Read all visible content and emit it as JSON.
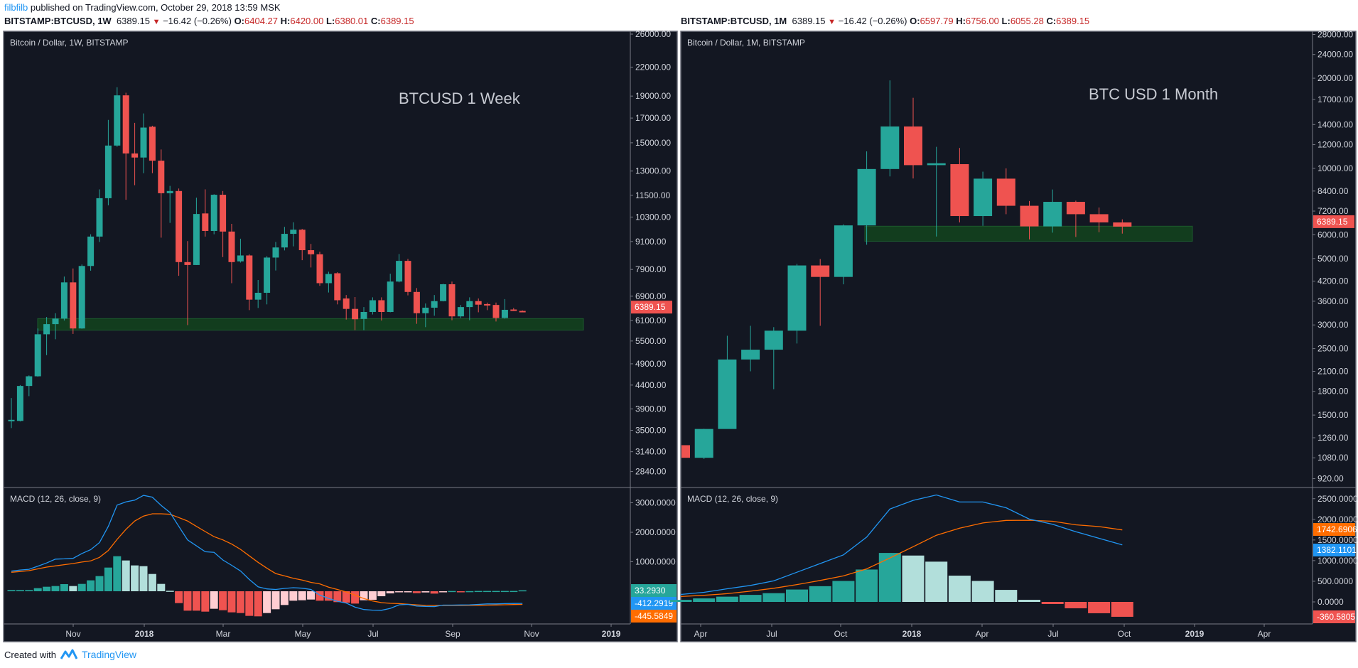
{
  "header": {
    "author": "filbfilb",
    "published": " published on TradingView.com, October 29, 2018 13:59 MSK"
  },
  "colors": {
    "up": "#26a69a",
    "up_light": "#b2dfdb",
    "down": "#ef5350",
    "down_light": "#ffcdd2",
    "macd": "#2196f3",
    "signal": "#ff6d00",
    "zone": "#123f1f",
    "bg": "#131722",
    "axis_text": "#d1d4dc",
    "brand": "#2196f3"
  },
  "footer": {
    "created_with": "Created with",
    "brand": "TradingView"
  },
  "chart_data": [
    {
      "type": "candlestick",
      "symbol_line": {
        "symbol": "BITSTAMP:BTCUSD, 1W",
        "last": "6389.15",
        "change": "−16.42 (−0.26%)",
        "o_label": "O:",
        "o": "6404.27",
        "h_label": "H:",
        "h": "6420.00",
        "l_label": "L:",
        "l": "6380.01",
        "c_label": "C:",
        "c": "6389.15",
        "direction": "▼"
      },
      "title": "Bitcoin / Dollar, 1W, BITSTAMP",
      "annotation": "BTCUSD 1 Week",
      "price_scale": "log",
      "y_ticks": [
        "26000.00",
        "22000.00",
        "19000.00",
        "17000.00",
        "15000.00",
        "13000.00",
        "11500.00",
        "10300.00",
        "9100.00",
        "7900.00",
        "6900.00",
        "6100.00",
        "5500.00",
        "4900.00",
        "4400.00",
        "3900.00",
        "3500.00",
        "3140.00",
        "2840.00"
      ],
      "last_price_label": "6389.15",
      "x_ticks": [
        "Nov",
        "2018",
        "Mar",
        "May",
        "Jul",
        "Sep",
        "Nov",
        "2019"
      ],
      "support_zone": {
        "low": 5810,
        "high": 6160
      },
      "ohlc": [
        [
          3670,
          4120,
          3540,
          3690
        ],
        [
          3670,
          4400,
          3660,
          4380
        ],
        [
          4380,
          4620,
          4160,
          4600
        ],
        [
          4600,
          5860,
          4590,
          5690
        ],
        [
          5690,
          6210,
          5120,
          5990
        ],
        [
          5990,
          6330,
          5550,
          6160
        ],
        [
          6160,
          7620,
          6100,
          7400
        ],
        [
          7400,
          7940,
          5700,
          5860
        ],
        [
          5860,
          8100,
          5850,
          8040
        ],
        [
          8040,
          9440,
          7850,
          9330
        ],
        [
          9330,
          11850,
          9080,
          11330
        ],
        [
          11330,
          16840,
          10930,
          14790
        ],
        [
          14790,
          19870,
          14700,
          19070
        ],
        [
          19070,
          19320,
          11240,
          14210
        ],
        [
          14210,
          16590,
          12100,
          13920
        ],
        [
          13920,
          17400,
          12860,
          16200
        ],
        [
          16270,
          16350,
          12860,
          13700
        ],
        [
          13700,
          14500,
          9280,
          11620
        ],
        [
          11620,
          12060,
          10000,
          11750
        ],
        [
          11750,
          11900,
          7650,
          8200
        ],
        [
          8200,
          9120,
          5960,
          8080
        ],
        [
          8080,
          11360,
          8080,
          10460
        ],
        [
          10490,
          11850,
          9330,
          9600
        ],
        [
          9600,
          11560,
          9440,
          11530
        ],
        [
          11530,
          11750,
          8410,
          9570
        ],
        [
          9570,
          9950,
          7370,
          8200
        ],
        [
          8230,
          9230,
          8180,
          8480
        ],
        [
          8480,
          8530,
          6430,
          6780
        ],
        [
          6780,
          7490,
          6500,
          7020
        ],
        [
          7020,
          8450,
          6620,
          8390
        ],
        [
          8390,
          9080,
          7860,
          8830
        ],
        [
          8830,
          9800,
          8700,
          9460
        ],
        [
          9460,
          10030,
          8880,
          9660
        ],
        [
          9660,
          9700,
          8280,
          8710
        ],
        [
          8710,
          8990,
          7980,
          8530
        ],
        [
          8530,
          8640,
          7270,
          7370
        ],
        [
          7370,
          7810,
          7030,
          7720
        ],
        [
          7750,
          7790,
          6620,
          6760
        ],
        [
          6820,
          6940,
          6130,
          6470
        ],
        [
          6470,
          6870,
          5810,
          6140
        ],
        [
          6150,
          6530,
          5810,
          6370
        ],
        [
          6370,
          6860,
          6290,
          6760
        ],
        [
          6760,
          6860,
          6100,
          6370
        ],
        [
          6370,
          7730,
          6360,
          7430
        ],
        [
          7430,
          8540,
          7400,
          8250
        ],
        [
          8250,
          8330,
          6930,
          7050
        ],
        [
          7050,
          7190,
          6000,
          6330
        ],
        [
          6330,
          6650,
          5900,
          6510
        ],
        [
          6510,
          6940,
          6250,
          6730
        ],
        [
          6730,
          7350,
          6720,
          7330
        ],
        [
          7330,
          7430,
          6110,
          6230
        ],
        [
          6230,
          6600,
          6180,
          6530
        ],
        [
          6530,
          6860,
          6110,
          6730
        ],
        [
          6730,
          6820,
          6360,
          6610
        ],
        [
          6630,
          6680,
          6430,
          6590
        ],
        [
          6600,
          6680,
          6070,
          6180
        ],
        [
          6180,
          6800,
          6160,
          6440
        ],
        [
          6450,
          6500,
          6400,
          6430
        ],
        [
          6404.27,
          6420,
          6380.01,
          6389.15
        ]
      ],
      "macd": {
        "label": "MACD (12, 26, close, 9)",
        "y_ticks": [
          "3000.0000",
          "2000.0000",
          "1000.0000"
        ],
        "badges": {
          "histogram": "33.2930",
          "macd": "-412.2919",
          "signal": "-445.5849"
        },
        "macd_line": [
          683,
          720,
          745,
          850,
          960,
          1090,
          1100,
          1116,
          1280,
          1410,
          1650,
          2200,
          2920,
          3030,
          3090,
          3250,
          3190,
          2910,
          2670,
          2200,
          1740,
          1540,
          1340,
          1320,
          1060,
          880,
          690,
          400,
          150,
          80,
          60,
          96,
          120,
          104,
          60,
          -130,
          -240,
          -340,
          -400,
          -540,
          -620,
          -640,
          -645,
          -580,
          -460,
          -445,
          -500,
          -515,
          -520,
          -470,
          -470,
          -466,
          -460,
          -445,
          -430,
          -430,
          -420,
          -415,
          -412.2919
        ],
        "signal_line": [
          643,
          670,
          700,
          760,
          820,
          860,
          900,
          940,
          990,
          1030,
          1150,
          1380,
          1760,
          2100,
          2380,
          2550,
          2627,
          2627,
          2610,
          2500,
          2380,
          2200,
          2024,
          1850,
          1743,
          1600,
          1422,
          1200,
          980,
          780,
          600,
          520,
          440,
          380,
          300,
          250,
          140,
          60,
          -24,
          -130,
          -249,
          -330,
          -386,
          -410,
          -420,
          -442,
          -460,
          -480,
          -482,
          -482,
          -482,
          -482,
          -480,
          -475,
          -470,
          -465,
          -458,
          -450,
          -445.5849
        ],
        "histogram": [
          40,
          40,
          40,
          105,
          153,
          177,
          241,
          177,
          249,
          370,
          514,
          803,
          1188,
          1044,
          876,
          851,
          586,
          249,
          16,
          -402,
          -659,
          -659,
          -691,
          -594,
          -643,
          -715,
          -739,
          -835,
          -851,
          -739,
          -610,
          -466,
          -321,
          -305,
          -281,
          -321,
          -321,
          -369,
          -386,
          -418,
          -305,
          -289,
          -169,
          -72,
          -32,
          -24,
          -64,
          -40,
          -80,
          -24,
          8,
          -16,
          4,
          10,
          10,
          10,
          10,
          10,
          33.293
        ]
      }
    },
    {
      "type": "candlestick",
      "symbol_line": {
        "symbol": "BITSTAMP:BTCUSD, 1M",
        "last": "6389.15",
        "change": "−16.42 (−0.26%)",
        "o_label": "O:",
        "o": "6597.79",
        "h_label": "H:",
        "h": "6756.00",
        "l_label": "L:",
        "l": "6055.28",
        "c_label": "C:",
        "c": "6389.15",
        "direction": "▼"
      },
      "title": "Bitcoin / Dollar, 1M, BITSTAMP",
      "annotation": "BTC USD 1 Month",
      "price_scale": "log",
      "y_ticks": [
        "28000.00",
        "24000.00",
        "20000.00",
        "17000.00",
        "14000.00",
        "12000.00",
        "10000.00",
        "8400.00",
        "7200.00",
        "6000.00",
        "5000.00",
        "4200.00",
        "3600.00",
        "3000.00",
        "2500.00",
        "2100.00",
        "1800.00",
        "1500.00",
        "1260.00",
        "1080.00",
        "920.00"
      ],
      "last_price_label": "6389.15",
      "x_ticks": [
        "Apr",
        "Jul",
        "Oct",
        "2018",
        "Apr",
        "Jul",
        "Oct",
        "2019",
        "Apr"
      ],
      "support_zone": {
        "low": 5710,
        "high": 6410
      },
      "ohlc": [
        [
          1190,
          1200,
          1080,
          1080
        ],
        [
          1080,
          1350,
          1070,
          1348
        ],
        [
          1348,
          2760,
          1350,
          2300
        ],
        [
          2300,
          2980,
          2100,
          2480
        ],
        [
          2480,
          2950,
          1830,
          2870
        ],
        [
          2870,
          4800,
          2600,
          4740
        ],
        [
          4740,
          4980,
          2980,
          4340
        ],
        [
          4340,
          6500,
          4100,
          6450
        ],
        [
          6450,
          11400,
          5560,
          9950
        ],
        [
          9950,
          19666,
          9400,
          13800
        ],
        [
          13800,
          17200,
          9250,
          10250
        ],
        [
          10250,
          11800,
          5920,
          10400
        ],
        [
          10330,
          11700,
          6600,
          6930
        ],
        [
          6930,
          9750,
          6430,
          9240
        ],
        [
          9240,
          10000,
          7030,
          7500
        ],
        [
          7500,
          7780,
          5790,
          6400
        ],
        [
          6400,
          8500,
          6100,
          7730
        ],
        [
          7730,
          7800,
          5900,
          7030
        ],
        [
          7030,
          7400,
          6120,
          6600
        ],
        [
          6597.79,
          6756,
          6055.28,
          6389.15
        ]
      ],
      "macd": {
        "label": "MACD (12, 26, close, 9)",
        "y_ticks": [
          "2500.0000",
          "2000.0000",
          "1500.0000",
          "1000.0000",
          "500.0000",
          "0.0000"
        ],
        "badges": {
          "signal": "1742.6906",
          "macd": "1382.1101",
          "histogram": "-360.5805"
        },
        "macd_line": [
          180,
          233,
          318,
          400,
          510,
          720,
          930,
          1140,
          1570,
          2250,
          2460,
          2590,
          2420,
          2420,
          2280,
          2006,
          1880,
          1700,
          1540,
          1382.1101
        ],
        "signal_line": [
          130,
          160,
          200,
          260,
          330,
          420,
          520,
          630,
          800,
          1064,
          1337,
          1615,
          1784,
          1912,
          1975,
          1977,
          1954,
          1867,
          1824,
          1742.6906
        ],
        "histogram": [
          50,
          85,
          127,
          170,
          212,
          300,
          381,
          508,
          784,
          1186,
          1123,
          975,
          636,
          508,
          291,
          51,
          -51,
          -154,
          -274,
          -360.5805
        ]
      }
    }
  ]
}
